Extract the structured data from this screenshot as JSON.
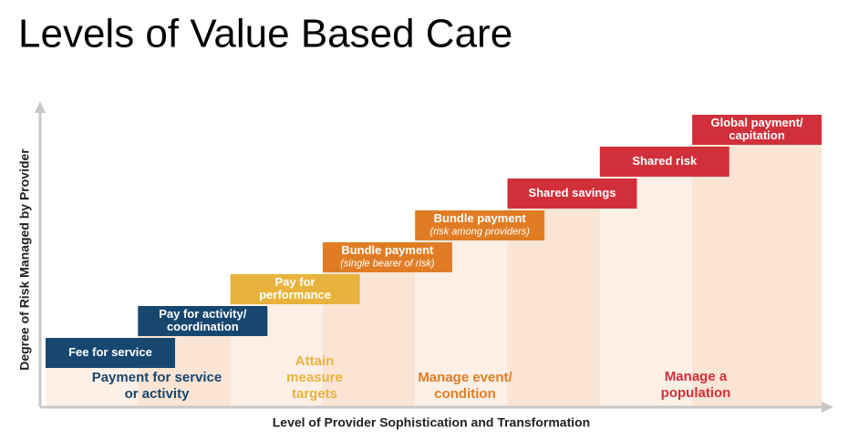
{
  "title": "Levels of Value Based Care",
  "y_axis_label": "Degree of Risk Managed by Provider",
  "x_axis_label": "Level of Provider Sophistication and Transformation",
  "steps": [
    {
      "label_lines": [
        "Fee for service"
      ],
      "color": "#17476f"
    },
    {
      "label_lines": [
        "Pay for activity/",
        "coordination"
      ],
      "color": "#17476f"
    },
    {
      "label_lines": [
        "Pay for",
        "performance"
      ],
      "color": "#e8b33c"
    },
    {
      "label_lines": [
        "Bundle payment"
      ],
      "sublabel": "(single bearer of risk)",
      "color": "#e07d24"
    },
    {
      "label_lines": [
        "Bundle payment"
      ],
      "sublabel": "(risk among providers)",
      "color": "#e07d24"
    },
    {
      "label_lines": [
        "Shared savings"
      ],
      "color": "#d1303b"
    },
    {
      "label_lines": [
        "Shared risk"
      ],
      "color": "#d1303b"
    },
    {
      "label_lines": [
        "Global payment/",
        "capitation"
      ],
      "color": "#d1303b"
    }
  ],
  "groups": [
    {
      "lines": [
        "Payment for service",
        "or activity"
      ],
      "color": "#17476f"
    },
    {
      "lines": [
        "Attain",
        "measure",
        "targets"
      ],
      "color": "#e8b33c"
    },
    {
      "lines": [
        "Manage event/",
        "condition"
      ],
      "color": "#e07d24"
    },
    {
      "lines": [
        "Manage a",
        "population"
      ],
      "color": "#d1303b"
    }
  ]
}
